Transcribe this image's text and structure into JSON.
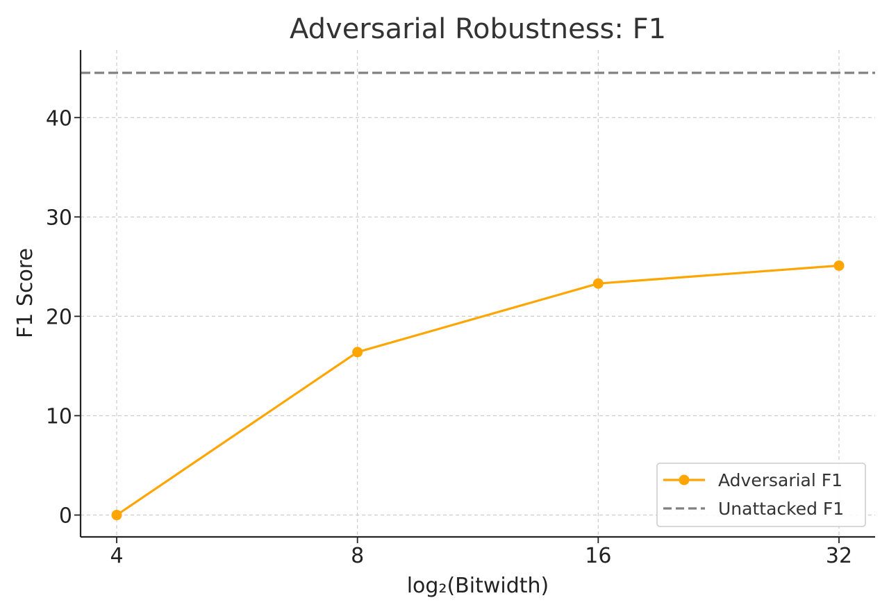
{
  "chart_data": {
    "type": "line",
    "title": "Adversarial Robustness: F1",
    "xlabel": "log₂(Bitwidth)",
    "ylabel": "F1 Score",
    "x_scale": "log2",
    "x": [
      4,
      8,
      16,
      32
    ],
    "x_tick_labels": [
      "4",
      "8",
      "16",
      "32"
    ],
    "y_ticks": [
      0,
      10,
      20,
      30,
      40
    ],
    "y_tick_labels": [
      "0",
      "10",
      "20",
      "30",
      "40"
    ],
    "ylim": [
      -2.2,
      46.8
    ],
    "grid": true,
    "legend_position": "bottom-right",
    "series": [
      {
        "name": "Adversarial F1",
        "values": [
          0.0,
          16.4,
          23.3,
          25.1
        ],
        "color": "#FFA500",
        "style": "solid",
        "marker": "circle"
      }
    ],
    "reference_lines": [
      {
        "name": "Unattacked F1",
        "value": 44.5,
        "color": "#808080",
        "style": "dashed"
      }
    ]
  }
}
